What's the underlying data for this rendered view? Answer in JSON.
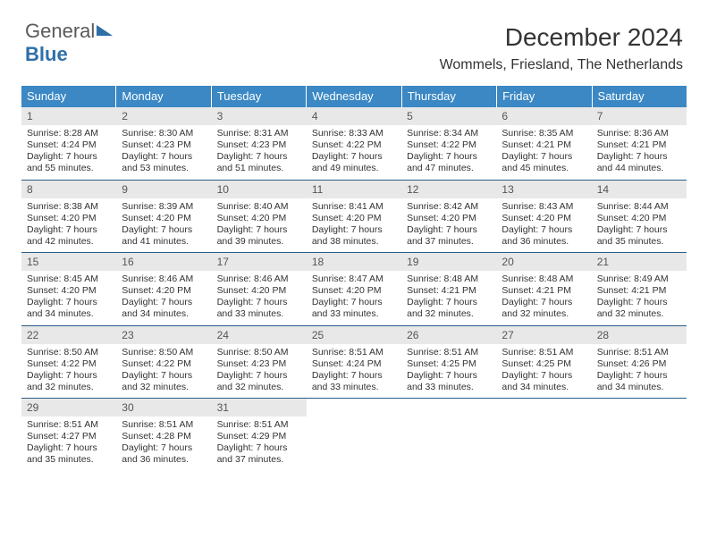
{
  "logo": {
    "part1": "General",
    "part2": "Blue"
  },
  "title": "December 2024",
  "subtitle": "Wommels, Friesland, The Netherlands",
  "colors": {
    "header_bg": "#3b88c4",
    "header_text": "#ffffff",
    "daynum_bg": "#e8e8e8",
    "week_divider": "#2a5d88",
    "body_text": "#333333",
    "logo_blue": "#2f6fa8",
    "logo_gray": "#5a5a5a",
    "page_bg": "#ffffff"
  },
  "typography": {
    "title_fontsize": 28,
    "subtitle_fontsize": 16,
    "header_fontsize": 13,
    "daynum_fontsize": 12,
    "body_fontsize": 10.5,
    "font_family": "Arial"
  },
  "layout": {
    "calendar_width": 744,
    "columns": 7,
    "rows": 5
  },
  "weekdays": [
    "Sunday",
    "Monday",
    "Tuesday",
    "Wednesday",
    "Thursday",
    "Friday",
    "Saturday"
  ],
  "days": [
    {
      "n": "1",
      "sunrise": "8:28 AM",
      "sunset": "4:24 PM",
      "daylight": "7 hours and 55 minutes."
    },
    {
      "n": "2",
      "sunrise": "8:30 AM",
      "sunset": "4:23 PM",
      "daylight": "7 hours and 53 minutes."
    },
    {
      "n": "3",
      "sunrise": "8:31 AM",
      "sunset": "4:23 PM",
      "daylight": "7 hours and 51 minutes."
    },
    {
      "n": "4",
      "sunrise": "8:33 AM",
      "sunset": "4:22 PM",
      "daylight": "7 hours and 49 minutes."
    },
    {
      "n": "5",
      "sunrise": "8:34 AM",
      "sunset": "4:22 PM",
      "daylight": "7 hours and 47 minutes."
    },
    {
      "n": "6",
      "sunrise": "8:35 AM",
      "sunset": "4:21 PM",
      "daylight": "7 hours and 45 minutes."
    },
    {
      "n": "7",
      "sunrise": "8:36 AM",
      "sunset": "4:21 PM",
      "daylight": "7 hours and 44 minutes."
    },
    {
      "n": "8",
      "sunrise": "8:38 AM",
      "sunset": "4:20 PM",
      "daylight": "7 hours and 42 minutes."
    },
    {
      "n": "9",
      "sunrise": "8:39 AM",
      "sunset": "4:20 PM",
      "daylight": "7 hours and 41 minutes."
    },
    {
      "n": "10",
      "sunrise": "8:40 AM",
      "sunset": "4:20 PM",
      "daylight": "7 hours and 39 minutes."
    },
    {
      "n": "11",
      "sunrise": "8:41 AM",
      "sunset": "4:20 PM",
      "daylight": "7 hours and 38 minutes."
    },
    {
      "n": "12",
      "sunrise": "8:42 AM",
      "sunset": "4:20 PM",
      "daylight": "7 hours and 37 minutes."
    },
    {
      "n": "13",
      "sunrise": "8:43 AM",
      "sunset": "4:20 PM",
      "daylight": "7 hours and 36 minutes."
    },
    {
      "n": "14",
      "sunrise": "8:44 AM",
      "sunset": "4:20 PM",
      "daylight": "7 hours and 35 minutes."
    },
    {
      "n": "15",
      "sunrise": "8:45 AM",
      "sunset": "4:20 PM",
      "daylight": "7 hours and 34 minutes."
    },
    {
      "n": "16",
      "sunrise": "8:46 AM",
      "sunset": "4:20 PM",
      "daylight": "7 hours and 34 minutes."
    },
    {
      "n": "17",
      "sunrise": "8:46 AM",
      "sunset": "4:20 PM",
      "daylight": "7 hours and 33 minutes."
    },
    {
      "n": "18",
      "sunrise": "8:47 AM",
      "sunset": "4:20 PM",
      "daylight": "7 hours and 33 minutes."
    },
    {
      "n": "19",
      "sunrise": "8:48 AM",
      "sunset": "4:21 PM",
      "daylight": "7 hours and 32 minutes."
    },
    {
      "n": "20",
      "sunrise": "8:48 AM",
      "sunset": "4:21 PM",
      "daylight": "7 hours and 32 minutes."
    },
    {
      "n": "21",
      "sunrise": "8:49 AM",
      "sunset": "4:21 PM",
      "daylight": "7 hours and 32 minutes."
    },
    {
      "n": "22",
      "sunrise": "8:50 AM",
      "sunset": "4:22 PM",
      "daylight": "7 hours and 32 minutes."
    },
    {
      "n": "23",
      "sunrise": "8:50 AM",
      "sunset": "4:22 PM",
      "daylight": "7 hours and 32 minutes."
    },
    {
      "n": "24",
      "sunrise": "8:50 AM",
      "sunset": "4:23 PM",
      "daylight": "7 hours and 32 minutes."
    },
    {
      "n": "25",
      "sunrise": "8:51 AM",
      "sunset": "4:24 PM",
      "daylight": "7 hours and 33 minutes."
    },
    {
      "n": "26",
      "sunrise": "8:51 AM",
      "sunset": "4:25 PM",
      "daylight": "7 hours and 33 minutes."
    },
    {
      "n": "27",
      "sunrise": "8:51 AM",
      "sunset": "4:25 PM",
      "daylight": "7 hours and 34 minutes."
    },
    {
      "n": "28",
      "sunrise": "8:51 AM",
      "sunset": "4:26 PM",
      "daylight": "7 hours and 34 minutes."
    },
    {
      "n": "29",
      "sunrise": "8:51 AM",
      "sunset": "4:27 PM",
      "daylight": "7 hours and 35 minutes."
    },
    {
      "n": "30",
      "sunrise": "8:51 AM",
      "sunset": "4:28 PM",
      "daylight": "7 hours and 36 minutes."
    },
    {
      "n": "31",
      "sunrise": "8:51 AM",
      "sunset": "4:29 PM",
      "daylight": "7 hours and 37 minutes."
    }
  ],
  "labels": {
    "sunrise_prefix": "Sunrise: ",
    "sunset_prefix": "Sunset: ",
    "daylight_prefix": "Daylight: "
  }
}
